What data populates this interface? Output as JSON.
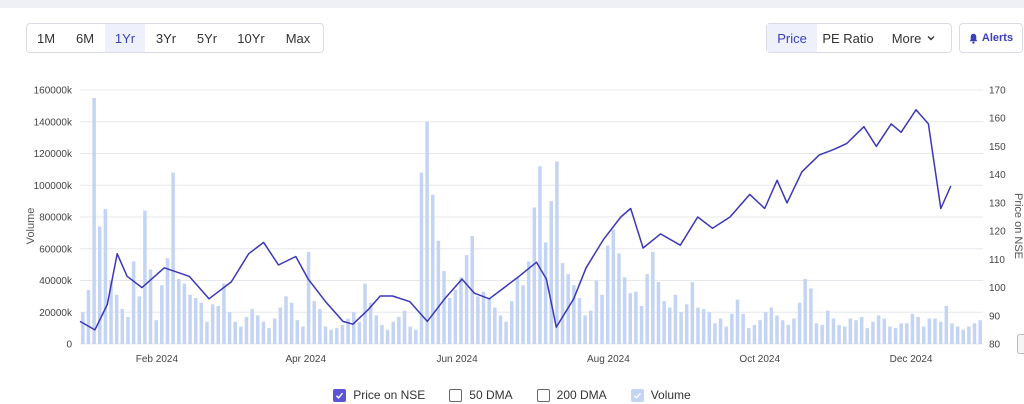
{
  "range_buttons": [
    {
      "label": "1M",
      "active": false
    },
    {
      "label": "6M",
      "active": false
    },
    {
      "label": "1Yr",
      "active": true
    },
    {
      "label": "3Yr",
      "active": false
    },
    {
      "label": "5Yr",
      "active": false
    },
    {
      "label": "10Yr",
      "active": false
    },
    {
      "label": "Max",
      "active": false
    }
  ],
  "metric_buttons": {
    "price": "Price",
    "pe_ratio": "PE Ratio",
    "more": "More"
  },
  "alerts_label": "Alerts",
  "legend": {
    "price": "Price on NSE",
    "dma50": "50 DMA",
    "dma200": "200 DMA",
    "volume": "Volume"
  },
  "colors": {
    "price_line": "#3b37b8",
    "volume_bar": "#c4d4f4",
    "accent": "#5a55d6"
  },
  "chart_data": {
    "type": "line",
    "x_tick_labels": [
      "Feb 2024",
      "Apr 2024",
      "Jun 2024",
      "Aug 2024",
      "Oct 2024",
      "Dec 2024"
    ],
    "xlim": [
      "2024-01-01",
      "2024-12-30"
    ],
    "left_axis": {
      "title": "Volume",
      "ticks": [
        "0",
        "20000k",
        "40000k",
        "60000k",
        "80000k",
        "100000k",
        "120000k",
        "140000k",
        "160000k"
      ],
      "range": [
        0,
        160000
      ]
    },
    "right_axis": {
      "title": "Price on NSE",
      "ticks": [
        "80",
        "90",
        "100",
        "110",
        "120",
        "130",
        "140",
        "150",
        "160",
        "170"
      ],
      "range": [
        80,
        170
      ]
    },
    "grid": "horizontal",
    "series": [
      {
        "name": "Price on NSE",
        "kind": "line",
        "points": [
          [
            "2024-01-01",
            88
          ],
          [
            "2024-01-07",
            85
          ],
          [
            "2024-01-12",
            94
          ],
          [
            "2024-01-16",
            112
          ],
          [
            "2024-01-20",
            104
          ],
          [
            "2024-01-26",
            100
          ],
          [
            "2024-02-04",
            107
          ],
          [
            "2024-02-14",
            104
          ],
          [
            "2024-02-22",
            96
          ],
          [
            "2024-03-02",
            102
          ],
          [
            "2024-03-09",
            112
          ],
          [
            "2024-03-15",
            116
          ],
          [
            "2024-03-21",
            108
          ],
          [
            "2024-03-28",
            111
          ],
          [
            "2024-04-02",
            103
          ],
          [
            "2024-04-09",
            95
          ],
          [
            "2024-04-16",
            88
          ],
          [
            "2024-04-20",
            87
          ],
          [
            "2024-04-26",
            92
          ],
          [
            "2024-05-01",
            97
          ],
          [
            "2024-05-06",
            97
          ],
          [
            "2024-05-13",
            95
          ],
          [
            "2024-05-20",
            88
          ],
          [
            "2024-05-27",
            96
          ],
          [
            "2024-06-03",
            103
          ],
          [
            "2024-06-08",
            98
          ],
          [
            "2024-06-14",
            96
          ],
          [
            "2024-06-20",
            100
          ],
          [
            "2024-06-26",
            104
          ],
          [
            "2024-07-03",
            109
          ],
          [
            "2024-07-07",
            103
          ],
          [
            "2024-07-11",
            86
          ],
          [
            "2024-07-18",
            96
          ],
          [
            "2024-07-23",
            107
          ],
          [
            "2024-07-30",
            117
          ],
          [
            "2024-08-06",
            125
          ],
          [
            "2024-08-10",
            128
          ],
          [
            "2024-08-15",
            114
          ],
          [
            "2024-08-22",
            119
          ],
          [
            "2024-08-30",
            115
          ],
          [
            "2024-09-06",
            125
          ],
          [
            "2024-09-12",
            121
          ],
          [
            "2024-09-19",
            125
          ],
          [
            "2024-09-27",
            133
          ],
          [
            "2024-10-03",
            128
          ],
          [
            "2024-10-08",
            138
          ],
          [
            "2024-10-12",
            130
          ],
          [
            "2024-10-18",
            141
          ],
          [
            "2024-10-25",
            147
          ],
          [
            "2024-10-31",
            149
          ],
          [
            "2024-11-05",
            151
          ],
          [
            "2024-11-12",
            157
          ],
          [
            "2024-11-17",
            150
          ],
          [
            "2024-11-23",
            158
          ],
          [
            "2024-11-27",
            155
          ],
          [
            "2024-12-03",
            163
          ],
          [
            "2024-12-08",
            158
          ],
          [
            "2024-12-13",
            128
          ],
          [
            "2024-12-17",
            136
          ]
        ]
      },
      {
        "name": "Volume",
        "kind": "bar",
        "axis": "left",
        "unit": "k",
        "values": [
          20000,
          34000,
          155000,
          74000,
          85000,
          40000,
          31000,
          22000,
          17000,
          52000,
          30000,
          84000,
          47000,
          15000,
          37000,
          54000,
          108000,
          41000,
          38000,
          31000,
          29000,
          26000,
          14000,
          25000,
          24000,
          38000,
          20000,
          14000,
          11000,
          17000,
          22000,
          18000,
          14000,
          10000,
          16000,
          23000,
          30000,
          26000,
          15000,
          11000,
          58000,
          27000,
          22000,
          11000,
          9000,
          10000,
          12000,
          16000,
          20000,
          14000,
          38000,
          26000,
          18000,
          12000,
          9000,
          14000,
          17000,
          21000,
          11000,
          9000,
          108000,
          140000,
          94000,
          65000,
          46000,
          29000,
          34000,
          42000,
          56000,
          68000,
          30000,
          33000,
          29000,
          23000,
          18000,
          14000,
          27000,
          42000,
          37000,
          52000,
          86000,
          112000,
          64000,
          90000,
          115000,
          51000,
          44000,
          37000,
          29000,
          18000,
          21000,
          40000,
          31000,
          62000,
          72000,
          57000,
          42000,
          32000,
          33000,
          24000,
          44000,
          58000,
          39000,
          27000,
          23000,
          31000,
          20000,
          25000,
          39000,
          23000,
          22000,
          20000,
          13000,
          16000,
          11000,
          19000,
          28000,
          19000,
          10000,
          12000,
          15000,
          20000,
          23000,
          18000,
          15000,
          12000,
          16000,
          26000,
          41000,
          35000,
          13000,
          12000,
          21000,
          16000,
          12000,
          11000,
          16000,
          15000,
          17000,
          10000,
          14000,
          18000,
          16000,
          11000,
          10000,
          13000,
          13000,
          19000,
          17000,
          11000,
          16000,
          16000,
          14000,
          24000,
          13000,
          11000,
          9000,
          11000,
          13000,
          15000
        ]
      }
    ]
  }
}
